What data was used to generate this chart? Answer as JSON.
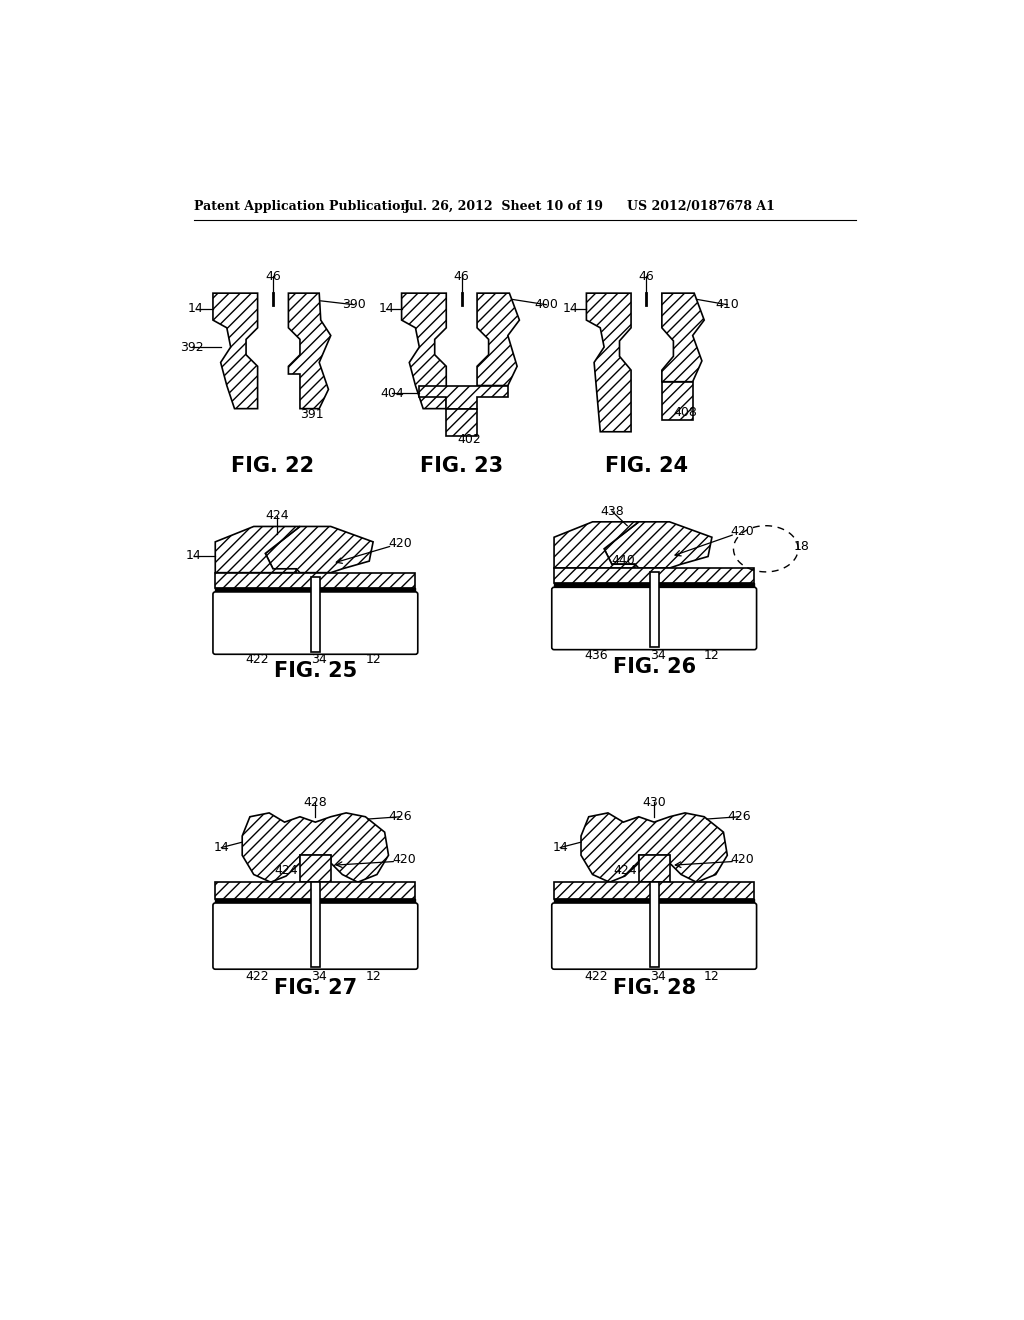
{
  "header_left": "Patent Application Publication",
  "header_center": "Jul. 26, 2012  Sheet 10 of 19",
  "header_right": "US 2012/0187678 A1",
  "bg_color": "#ffffff",
  "line_color": "#000000"
}
